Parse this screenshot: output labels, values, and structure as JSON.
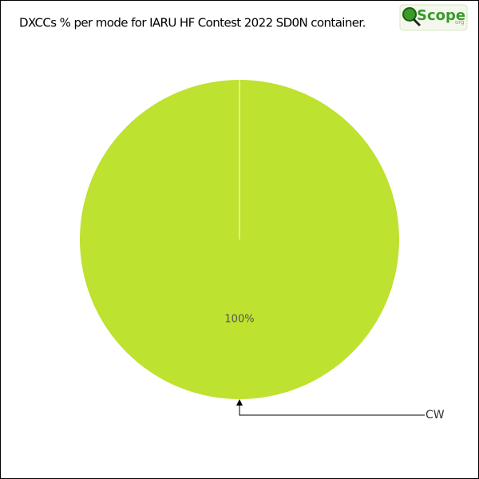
{
  "chart_data": {
    "type": "pie",
    "title": "DXCCs % per mode for IARU HF Contest 2022 SD0N container.",
    "categories": [
      "CW"
    ],
    "values": [
      100
    ],
    "value_labels": [
      "100%"
    ],
    "colors": [
      "#bde22f"
    ]
  },
  "logo": {
    "name": "Scope",
    "domain": "org"
  }
}
